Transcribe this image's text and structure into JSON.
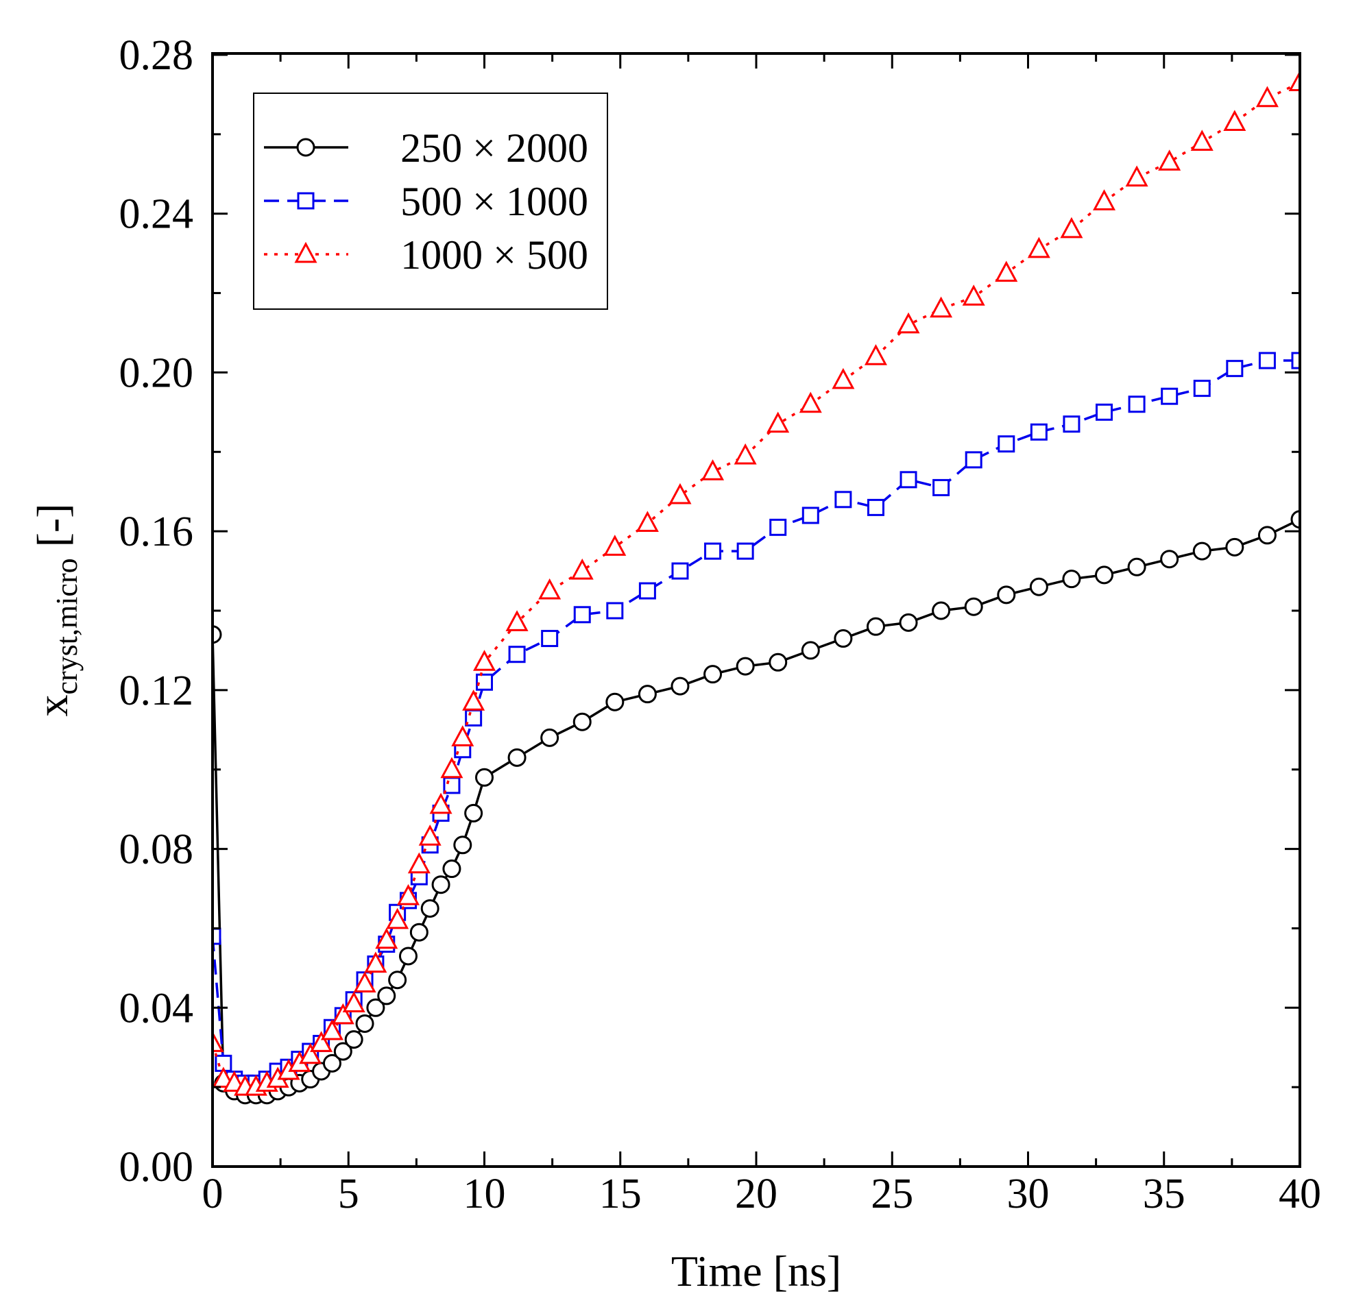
{
  "chart_data": {
    "type": "line",
    "xlabel": "Time [ns]",
    "ylabel": {
      "base": "x",
      "subscript": "cryst,micro",
      "suffix": " [-]"
    },
    "xlim": [
      0,
      40
    ],
    "ylim": [
      0,
      0.28
    ],
    "x_ticks": [
      "0",
      "5",
      "10",
      "15",
      "20",
      "25",
      "30",
      "35",
      "40"
    ],
    "y_ticks": [
      "0.00",
      "0.04",
      "0.08",
      "0.12",
      "0.16",
      "0.20",
      "0.24",
      "0.28"
    ],
    "grid": false,
    "legend_position": "top-left",
    "series": [
      {
        "name": "250 × 2000",
        "color": "#000000",
        "marker": "circle",
        "line": "solid",
        "points": [
          [
            0,
            0.134
          ],
          [
            0.4,
            0.021
          ],
          [
            0.8,
            0.019
          ],
          [
            1.2,
            0.018
          ],
          [
            1.6,
            0.018
          ],
          [
            2.0,
            0.018
          ],
          [
            2.4,
            0.019
          ],
          [
            2.8,
            0.02
          ],
          [
            3.2,
            0.021
          ],
          [
            3.6,
            0.022
          ],
          [
            4.0,
            0.024
          ],
          [
            4.4,
            0.026
          ],
          [
            4.8,
            0.029
          ],
          [
            5.2,
            0.032
          ],
          [
            5.6,
            0.036
          ],
          [
            6.0,
            0.04
          ],
          [
            6.4,
            0.043
          ],
          [
            6.8,
            0.047
          ],
          [
            7.2,
            0.053
          ],
          [
            7.6,
            0.059
          ],
          [
            8.0,
            0.065
          ],
          [
            8.4,
            0.071
          ],
          [
            8.8,
            0.075
          ],
          [
            9.2,
            0.081
          ],
          [
            9.6,
            0.089
          ],
          [
            10.0,
            0.098
          ],
          [
            11.2,
            0.103
          ],
          [
            12.4,
            0.108
          ],
          [
            13.6,
            0.112
          ],
          [
            14.8,
            0.117
          ],
          [
            16.0,
            0.119
          ],
          [
            17.2,
            0.121
          ],
          [
            18.4,
            0.124
          ],
          [
            19.6,
            0.126
          ],
          [
            20.8,
            0.127
          ],
          [
            22.0,
            0.13
          ],
          [
            23.2,
            0.133
          ],
          [
            24.4,
            0.136
          ],
          [
            25.6,
            0.137
          ],
          [
            26.8,
            0.14
          ],
          [
            28.0,
            0.141
          ],
          [
            29.2,
            0.144
          ],
          [
            30.4,
            0.146
          ],
          [
            31.6,
            0.148
          ],
          [
            32.8,
            0.149
          ],
          [
            34.0,
            0.151
          ],
          [
            35.2,
            0.153
          ],
          [
            36.4,
            0.155
          ],
          [
            37.6,
            0.156
          ],
          [
            38.8,
            0.159
          ],
          [
            40.0,
            0.163
          ]
        ]
      },
      {
        "name": "500 × 1000",
        "color": "#0000ee",
        "marker": "square",
        "line": "dashed",
        "points": [
          [
            0,
            0.058
          ],
          [
            0.4,
            0.026
          ],
          [
            0.8,
            0.022
          ],
          [
            1.2,
            0.021
          ],
          [
            1.6,
            0.021
          ],
          [
            2.0,
            0.022
          ],
          [
            2.4,
            0.024
          ],
          [
            2.8,
            0.025
          ],
          [
            3.2,
            0.027
          ],
          [
            3.6,
            0.029
          ],
          [
            4.0,
            0.031
          ],
          [
            4.4,
            0.035
          ],
          [
            4.8,
            0.038
          ],
          [
            5.2,
            0.042
          ],
          [
            5.6,
            0.047
          ],
          [
            6.0,
            0.051
          ],
          [
            6.4,
            0.056
          ],
          [
            6.8,
            0.064
          ],
          [
            7.2,
            0.067
          ],
          [
            7.6,
            0.073
          ],
          [
            8.0,
            0.081
          ],
          [
            8.4,
            0.089
          ],
          [
            8.8,
            0.096
          ],
          [
            9.2,
            0.105
          ],
          [
            9.6,
            0.113
          ],
          [
            10.0,
            0.122
          ],
          [
            11.2,
            0.129
          ],
          [
            12.4,
            0.133
          ],
          [
            13.6,
            0.139
          ],
          [
            14.8,
            0.14
          ],
          [
            16.0,
            0.145
          ],
          [
            17.2,
            0.15
          ],
          [
            18.4,
            0.155
          ],
          [
            19.6,
            0.155
          ],
          [
            20.8,
            0.161
          ],
          [
            22.0,
            0.164
          ],
          [
            23.2,
            0.168
          ],
          [
            24.4,
            0.166
          ],
          [
            25.6,
            0.173
          ],
          [
            26.8,
            0.171
          ],
          [
            28.0,
            0.178
          ],
          [
            29.2,
            0.182
          ],
          [
            30.4,
            0.185
          ],
          [
            31.6,
            0.187
          ],
          [
            32.8,
            0.19
          ],
          [
            34.0,
            0.192
          ],
          [
            35.2,
            0.194
          ],
          [
            36.4,
            0.196
          ],
          [
            37.6,
            0.201
          ],
          [
            38.8,
            0.203
          ],
          [
            40.0,
            0.203
          ]
        ]
      },
      {
        "name": "1000 × 500",
        "color": "#ff0000",
        "marker": "triangle",
        "line": "dotted",
        "points": [
          [
            0,
            0.031
          ],
          [
            0.4,
            0.022
          ],
          [
            0.8,
            0.021
          ],
          [
            1.2,
            0.02
          ],
          [
            1.6,
            0.02
          ],
          [
            2.0,
            0.021
          ],
          [
            2.4,
            0.022
          ],
          [
            2.8,
            0.024
          ],
          [
            3.2,
            0.026
          ],
          [
            3.6,
            0.028
          ],
          [
            4.0,
            0.031
          ],
          [
            4.4,
            0.034
          ],
          [
            4.8,
            0.038
          ],
          [
            5.2,
            0.041
          ],
          [
            5.6,
            0.046
          ],
          [
            6.0,
            0.051
          ],
          [
            6.4,
            0.057
          ],
          [
            6.8,
            0.062
          ],
          [
            7.2,
            0.068
          ],
          [
            7.6,
            0.076
          ],
          [
            8.0,
            0.083
          ],
          [
            8.4,
            0.091
          ],
          [
            8.8,
            0.1
          ],
          [
            9.2,
            0.108
          ],
          [
            9.6,
            0.117
          ],
          [
            10.0,
            0.127
          ],
          [
            11.2,
            0.137
          ],
          [
            12.4,
            0.145
          ],
          [
            13.6,
            0.15
          ],
          [
            14.8,
            0.156
          ],
          [
            16.0,
            0.162
          ],
          [
            17.2,
            0.169
          ],
          [
            18.4,
            0.175
          ],
          [
            19.6,
            0.179
          ],
          [
            20.8,
            0.187
          ],
          [
            22.0,
            0.192
          ],
          [
            23.2,
            0.198
          ],
          [
            24.4,
            0.204
          ],
          [
            25.6,
            0.212
          ],
          [
            26.8,
            0.216
          ],
          [
            28.0,
            0.219
          ],
          [
            29.2,
            0.225
          ],
          [
            30.4,
            0.231
          ],
          [
            31.6,
            0.236
          ],
          [
            32.8,
            0.243
          ],
          [
            34.0,
            0.249
          ],
          [
            35.2,
            0.253
          ],
          [
            36.4,
            0.258
          ],
          [
            37.6,
            0.263
          ],
          [
            38.8,
            0.269
          ],
          [
            40.0,
            0.273
          ]
        ]
      }
    ]
  }
}
